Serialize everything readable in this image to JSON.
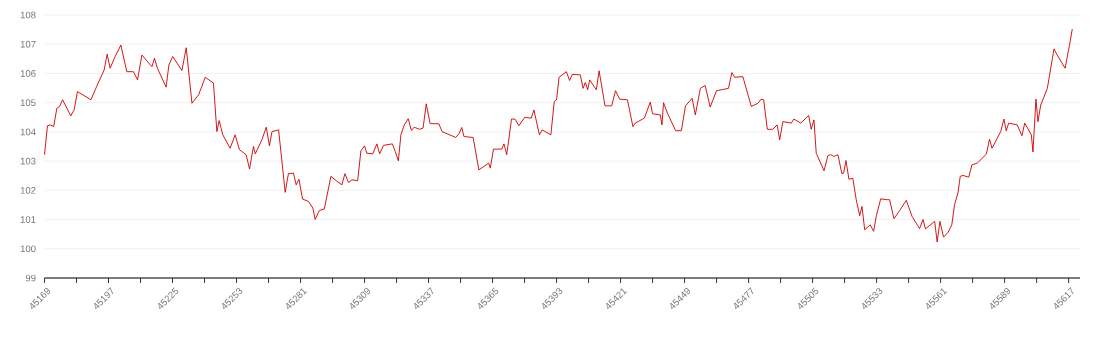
{
  "chart_data": {
    "type": "line",
    "color": "#cc0000",
    "grid": "y",
    "xlim": [
      45169,
      45622
    ],
    "ylim": [
      99,
      108
    ],
    "yticks": [
      99,
      100,
      101,
      102,
      103,
      104,
      105,
      106,
      107,
      108
    ],
    "xticks": [
      45169,
      {
        "value": 45183,
        "label": null
      },
      45197,
      {
        "value": 45211,
        "label": null
      },
      45225,
      {
        "value": 45239,
        "label": null
      },
      45253,
      {
        "value": 45267,
        "label": null
      },
      45281,
      {
        "value": 45295,
        "label": null
      },
      45309,
      {
        "value": 45323,
        "label": null
      },
      45337,
      {
        "value": 45351,
        "label": null
      },
      45365,
      {
        "value": 45379,
        "label": null
      },
      45393,
      {
        "value": 45407,
        "label": null
      },
      45421,
      {
        "value": 45435,
        "label": null
      },
      45449,
      {
        "value": 45463,
        "label": null
      },
      45477,
      {
        "value": 45491,
        "label": null
      },
      45505,
      {
        "value": 45519,
        "label": null
      },
      45533,
      {
        "value": 45547,
        "label": null
      },
      45561,
      {
        "value": 45575,
        "label": null
      },
      45589,
      {
        "value": 45603,
        "label": null
      },
      45617
    ],
    "x": [
      45169,
      45170.3,
      45171.5,
      45173,
      45174.4,
      45175.6,
      45176.9,
      45178.8,
      45180.5,
      45182,
      45183.4,
      45189.3,
      45191.9,
      45195.1,
      45196.4,
      45197.7,
      45199.9,
      45202.4,
      45205,
      45207.9,
      45209.7,
      45211.6,
      45216,
      45217.1,
      45218.4,
      45222.2,
      45223.4,
      45225.1,
      45229.1,
      45231,
      45233.5,
      45236.4,
      45237.8,
      45239.3,
      45242.9,
      45244.4,
      45245.4,
      45247,
      45250.2,
      45252.4,
      45254.3,
      45257.2,
      45258.7,
      45260.4,
      45261.2,
      45264.1,
      45266,
      45267.4,
      45268.5,
      45271.4,
      45274.3,
      45275.7,
      45277.9,
      45279.1,
      45280.3,
      45281.9,
      45284.5,
      45286.4,
      45287.4,
      45289.2,
      45291.4,
      45294.3,
      45296.9,
      45299.1,
      45300.4,
      45302,
      45303.5,
      45306,
      45307.4,
      45309,
      45310,
      45312.6,
      45314.4,
      45315.6,
      45317.3,
      45321.2,
      45322.4,
      45323.8,
      45324.9,
      45326.4,
      45328.1,
      45329.5,
      45330.7,
      45333.1,
      45334.6,
      45336,
      45337.7,
      45341.5,
      45342.9,
      45348.9,
      45350.4,
      45351.5,
      45352.5,
      45356.5,
      45359,
      45363.3,
      45364,
      45365.4,
      45369,
      45370,
      45371.2,
      45373.3,
      45374.8,
      45376.5,
      45379.1,
      45381.9,
      45383.1,
      45385.5,
      45386.7,
      45390.5,
      45392,
      45393,
      45394.1,
      45397.3,
      45398.7,
      45399.9,
      45403.4,
      45404.6,
      45405.6,
      45406.6,
      45407.5,
      45410.4,
      45411.6,
      45414.2,
      45417.1,
      45418.8,
      45420.6,
      45424,
      45426.4,
      45427.4,
      45431.4,
      45434,
      45435,
      45438.4,
      45439.1,
      45439.8,
      45441.5,
      45445.1,
      45447.6,
      45449.4,
      45452.3,
      45453.7,
      45455.9,
      45458,
      45460.2,
      45463,
      45465,
      45468.2,
      45469.7,
      45470.9,
      45474.5,
      45478.2,
      45481.1,
      45482.5,
      45483.6,
      45485.2,
      45487.6,
      45489.5,
      45490.6,
      45492,
      45495.7,
      45496.8,
      45499.8,
      45503.3,
      45504.4,
      45505.6,
      45506.6,
      45510,
      45511.7,
      45512.9,
      45514.3,
      45516.1,
      45517.8,
      45518.6,
      45519.6,
      45520.9,
      45522.6,
      45524.1,
      45525.6,
      45526.6,
      45527.8,
      45530.2,
      45531.7,
      45532.9,
      45534.8,
      45537.5,
      45538.7,
      45540.6,
      45543.1,
      45546,
      45548.5,
      45551.8,
      45553.3,
      45554.4,
      45558.4,
      45559.5,
      45560.7,
      45562.3,
      45564.2,
      45565.9,
      45567.1,
      45568.6,
      45569.6,
      45570.8,
      45573.3,
      45574.7,
      45577,
      45581,
      45582.4,
      45583.5,
      45587.3,
      45588.7,
      45589.7,
      45590.8,
      45594.5,
      45596.6,
      45597.8,
      45600.7,
      45601.4,
      45602.7,
      45603.6,
      45604.8,
      45607.7,
      45610.6,
      45612,
      45615.5,
      45616.7,
      45617.4,
      45618.6
    ],
    "values": [
      103.22,
      104.21,
      104.24,
      104.18,
      104.81,
      104.87,
      105.1,
      104.81,
      104.55,
      104.76,
      105.38,
      105.1,
      105.57,
      106.12,
      106.66,
      106.18,
      106.58,
      106.97,
      106.06,
      106.06,
      105.78,
      106.63,
      106.23,
      106.52,
      106.18,
      105.53,
      106.29,
      106.58,
      106.1,
      106.88,
      104.98,
      105.27,
      105.55,
      105.87,
      105.67,
      104.01,
      104.39,
      103.9,
      103.44,
      103.9,
      103.39,
      103.22,
      102.73,
      103.5,
      103.25,
      103.73,
      104.16,
      103.52,
      104.01,
      104.07,
      101.93,
      102.57,
      102.59,
      102.19,
      102.38,
      101.7,
      101.62,
      101.39,
      101.0,
      101.31,
      101.36,
      102.48,
      102.31,
      102.19,
      102.57,
      102.27,
      102.36,
      102.33,
      103.35,
      103.52,
      103.27,
      103.25,
      103.59,
      103.25,
      103.54,
      103.59,
      103.33,
      103.01,
      103.9,
      104.24,
      104.45,
      104.05,
      104.16,
      104.09,
      104.13,
      104.96,
      104.28,
      104.28,
      104.01,
      103.81,
      103.95,
      104.15,
      103.84,
      103.81,
      102.7,
      102.93,
      102.76,
      103.41,
      103.41,
      103.59,
      103.22,
      104.44,
      104.44,
      104.21,
      104.5,
      104.47,
      104.75,
      103.9,
      104.07,
      103.9,
      105.04,
      105.1,
      105.87,
      106.06,
      105.76,
      105.97,
      105.95,
      105.49,
      105.69,
      105.44,
      105.78,
      105.44,
      106.09,
      104.89,
      104.89,
      105.41,
      105.12,
      105.1,
      104.18,
      104.3,
      104.47,
      105.02,
      104.62,
      104.58,
      104.24,
      105.0,
      104.64,
      104.04,
      104.04,
      104.89,
      105.15,
      104.58,
      105.49,
      105.59,
      104.85,
      105.41,
      105.44,
      105.49,
      106.03,
      105.87,
      105.89,
      104.87,
      104.98,
      105.12,
      105.1,
      104.09,
      104.09,
      104.24,
      103.73,
      104.35,
      104.3,
      104.44,
      104.3,
      104.56,
      104.09,
      104.41,
      103.27,
      102.67,
      103.19,
      103.22,
      103.16,
      103.22,
      102.57,
      102.59,
      103.02,
      102.38,
      102.41,
      101.68,
      101.13,
      101.45,
      100.65,
      100.82,
      100.6,
      101.13,
      101.71,
      101.68,
      101.68,
      101.03,
      101.31,
      101.66,
      101.11,
      100.69,
      101.0,
      100.68,
      100.94,
      100.23,
      100.94,
      100.4,
      100.56,
      100.82,
      101.51,
      101.91,
      102.48,
      102.51,
      102.45,
      102.87,
      102.93,
      103.24,
      103.75,
      103.44,
      104.01,
      104.44,
      104.04,
      104.3,
      104.24,
      103.87,
      104.3,
      103.9,
      103.31,
      105.12,
      104.35,
      104.92,
      105.49,
      106.84,
      106.63,
      106.18,
      106.7,
      106.97,
      107.52
    ]
  }
}
